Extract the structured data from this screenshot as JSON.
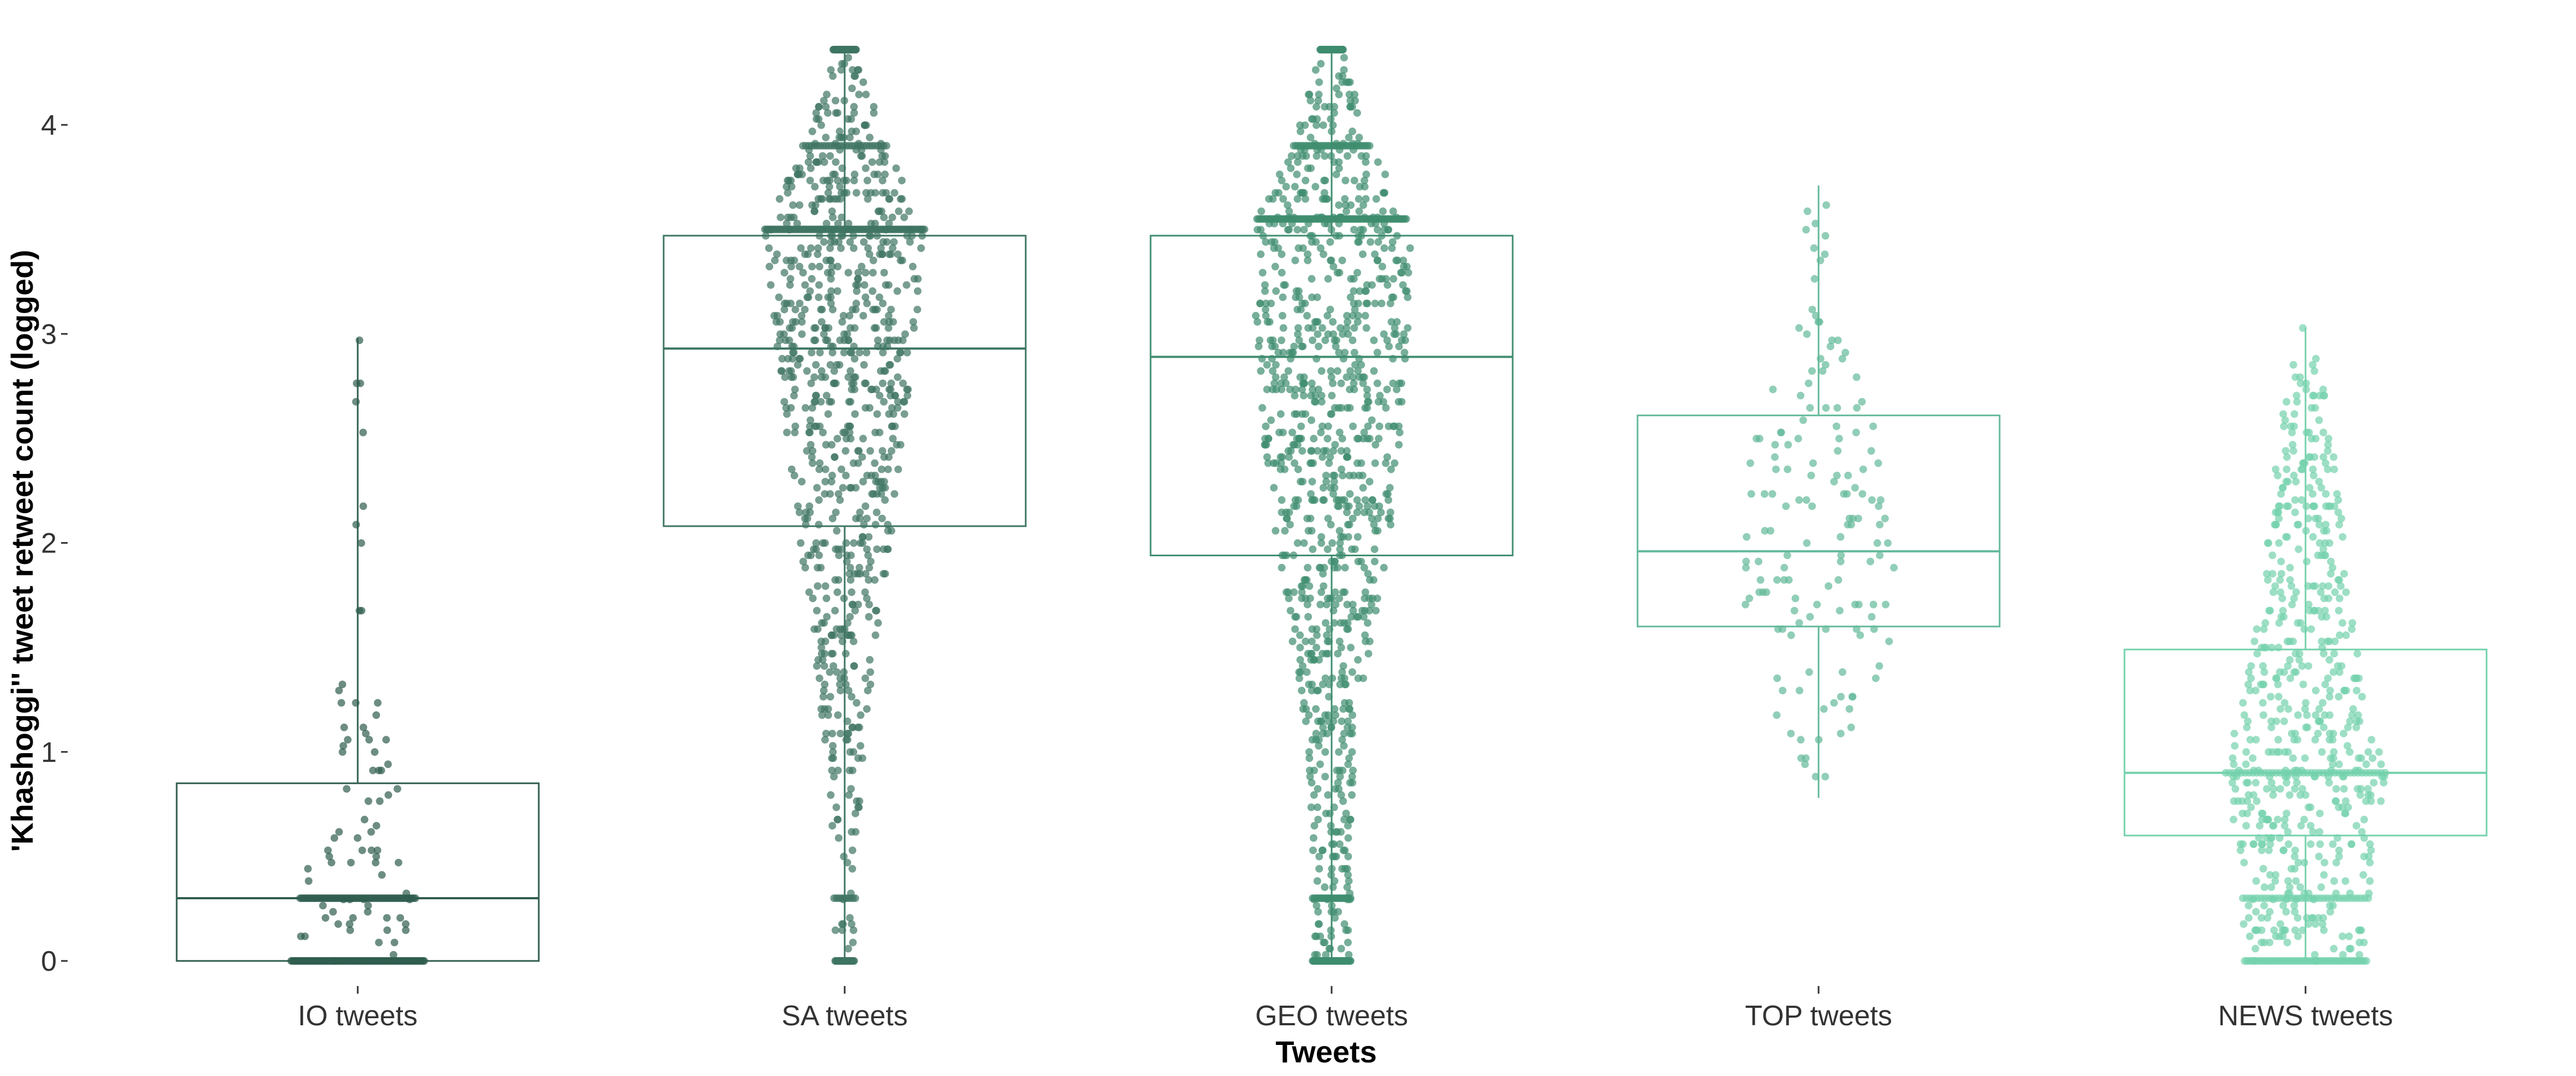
{
  "chart_data": {
    "type": "box",
    "title": "",
    "xlabel": "Tweets",
    "ylabel": "'Khashoggi'' tweet retweet count (logged)",
    "ylim": [
      -0.05,
      4.35
    ],
    "grid": false,
    "yticks": [
      0,
      1,
      2,
      3,
      4
    ],
    "categories": [
      "IO tweets",
      "SA tweets",
      "GEO tweets",
      "TOP tweets",
      "NEWS tweets"
    ],
    "colors": [
      "#2f5d4f",
      "#3e7563",
      "#3f8d6f",
      "#63b999",
      "#74d1ac"
    ],
    "box_stats": [
      {
        "name": "IO tweets",
        "min": 0,
        "q1": 0,
        "median": 0.3,
        "q3": 0.85,
        "max": 2.98
      },
      {
        "name": "SA tweets",
        "min": 0,
        "q1": 2.08,
        "median": 2.93,
        "q3": 3.47,
        "max": 4.36
      },
      {
        "name": "GEO tweets",
        "min": 0,
        "q1": 1.94,
        "median": 2.89,
        "q3": 3.47,
        "max": 4.36
      },
      {
        "name": "TOP tweets",
        "min": 0.78,
        "q1": 1.6,
        "median": 1.96,
        "q3": 2.61,
        "max": 3.71
      },
      {
        "name": "NEWS tweets",
        "min": 0,
        "q1": 0.6,
        "median": 0.9,
        "q3": 1.49,
        "max": 3.03
      }
    ],
    "dot_distribution": [
      {
        "name": "IO tweets",
        "n": 260,
        "peaks": [
          {
            "y": 0,
            "w": 0.45
          },
          {
            "y": 0.3,
            "w": 0.25
          }
        ],
        "spread": [
          [
            0,
            0.35
          ],
          [
            0.45,
            0.28
          ],
          [
            0.8,
            0.22
          ],
          [
            1.2,
            0.12
          ],
          [
            1.7,
            0.06
          ],
          [
            2.2,
            0.04
          ],
          [
            2.98,
            0.02
          ]
        ]
      },
      {
        "name": "SA tweets",
        "n": 1000,
        "peaks": [
          {
            "y": 0,
            "w": 0.03
          },
          {
            "y": 0.3,
            "w": 0.01
          },
          {
            "y": 3.5,
            "w": 0.1
          },
          {
            "y": 3.9,
            "w": 0.03
          },
          {
            "y": 4.36,
            "w": 0.05
          }
        ],
        "spread": [
          [
            0,
            0.05
          ],
          [
            0.5,
            0.06
          ],
          [
            1,
            0.1
          ],
          [
            1.5,
            0.16
          ],
          [
            2,
            0.24
          ],
          [
            2.5,
            0.3
          ],
          [
            3,
            0.38
          ],
          [
            3.5,
            0.42
          ],
          [
            3.9,
            0.22
          ],
          [
            4.36,
            0.06
          ]
        ]
      },
      {
        "name": "GEO tweets",
        "n": 1200,
        "peaks": [
          {
            "y": 0,
            "w": 0.05
          },
          {
            "y": 0.3,
            "w": 0.02
          },
          {
            "y": 3.55,
            "w": 0.08
          },
          {
            "y": 3.9,
            "w": 0.03
          },
          {
            "y": 4.36,
            "w": 0.05
          }
        ],
        "spread": [
          [
            0,
            0.1
          ],
          [
            0.5,
            0.1
          ],
          [
            1,
            0.12
          ],
          [
            1.5,
            0.2
          ],
          [
            2,
            0.3
          ],
          [
            2.5,
            0.36
          ],
          [
            3,
            0.4
          ],
          [
            3.5,
            0.42
          ],
          [
            3.9,
            0.2
          ],
          [
            4.36,
            0.06
          ]
        ]
      },
      {
        "name": "TOP tweets",
        "n": 150,
        "peaks": [],
        "spread": [
          [
            0.8,
            0.02
          ],
          [
            1.2,
            0.25
          ],
          [
            1.6,
            0.4
          ],
          [
            2,
            0.42
          ],
          [
            2.5,
            0.35
          ],
          [
            3,
            0.12
          ],
          [
            3.7,
            0.05
          ]
        ]
      },
      {
        "name": "NEWS tweets",
        "n": 700,
        "peaks": [
          {
            "y": 0,
            "w": 0.08
          },
          {
            "y": 0.3,
            "w": 0.05
          },
          {
            "y": 0.9,
            "w": 0.06
          }
        ],
        "spread": [
          [
            0,
            0.32
          ],
          [
            0.3,
            0.33
          ],
          [
            0.6,
            0.38
          ],
          [
            0.9,
            0.42
          ],
          [
            1.2,
            0.35
          ],
          [
            1.5,
            0.28
          ],
          [
            2,
            0.2
          ],
          [
            2.5,
            0.15
          ],
          [
            3.03,
            0.03
          ]
        ]
      }
    ]
  }
}
